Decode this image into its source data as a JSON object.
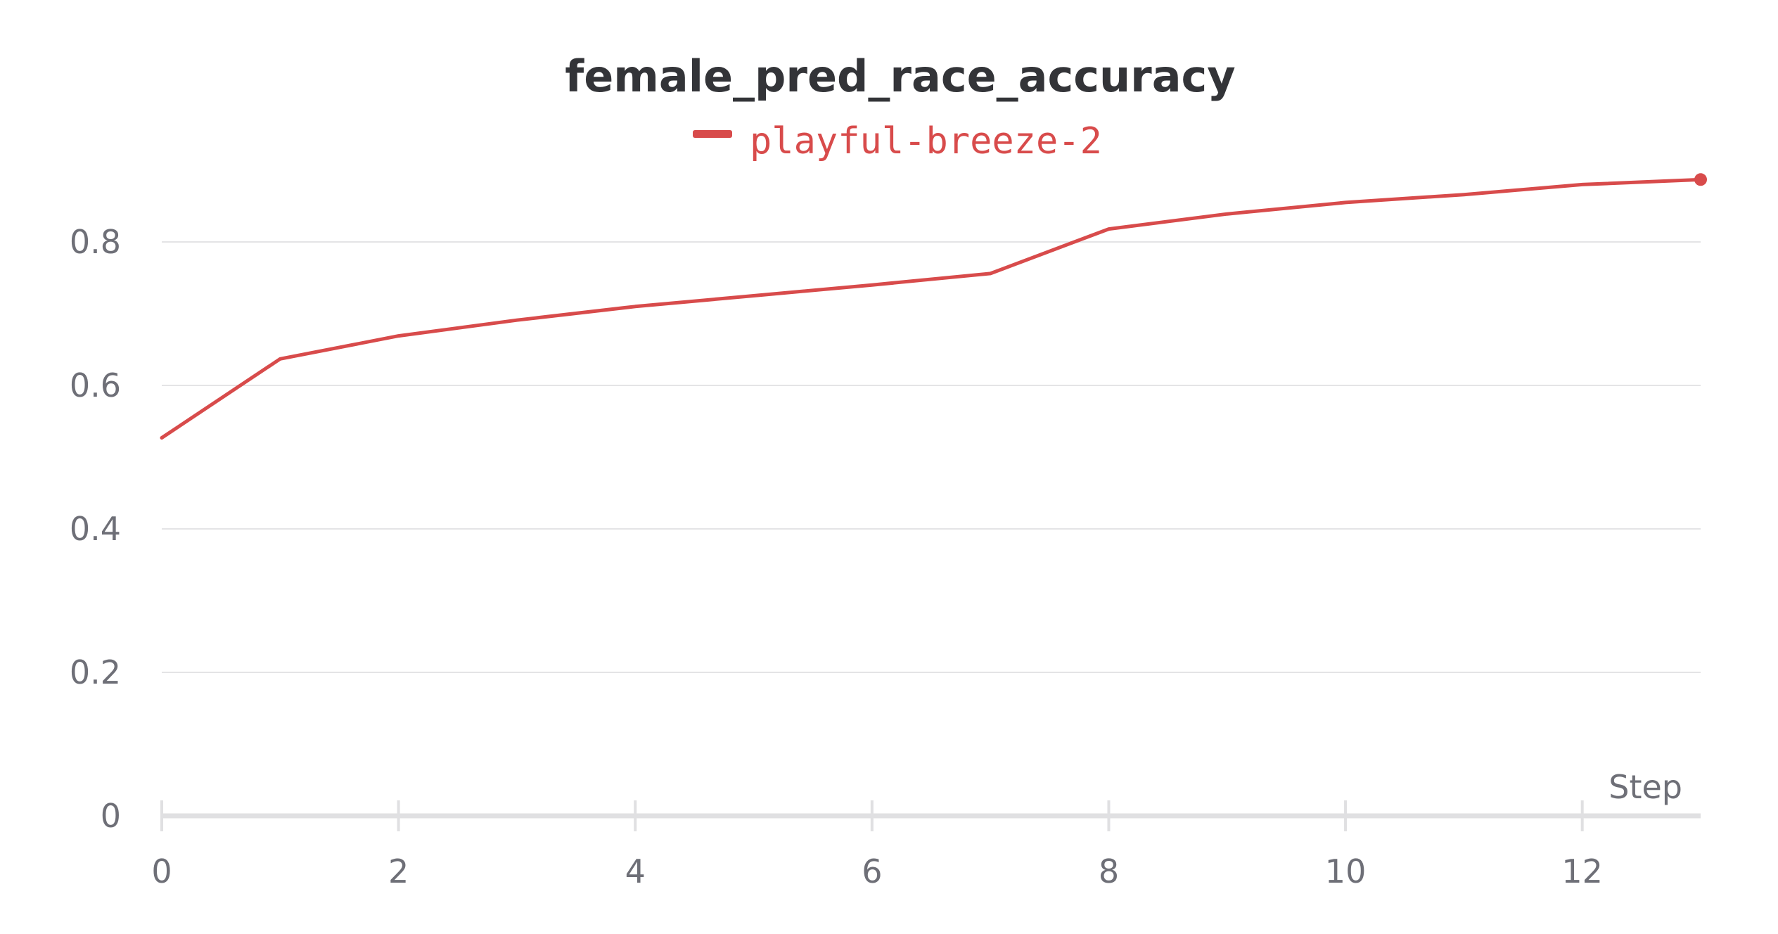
{
  "chart_data": {
    "type": "line",
    "title": "female_pred_race_accuracy",
    "xlabel": "Step",
    "ylabel": "",
    "x": [
      0,
      1,
      2,
      3,
      4,
      5,
      6,
      7,
      8,
      9,
      10,
      11,
      12,
      13
    ],
    "series": [
      {
        "name": "playful-breeze-2",
        "color": "#d84b4b",
        "values": [
          0.527,
          0.637,
          0.669,
          0.691,
          0.71,
          0.725,
          0.74,
          0.756,
          0.818,
          0.839,
          0.855,
          0.866,
          0.88,
          0.887
        ]
      }
    ],
    "xlim": [
      0,
      13
    ],
    "ylim": [
      0,
      0.9
    ],
    "x_ticks": [
      0,
      2,
      4,
      6,
      8,
      10,
      12
    ],
    "x_tick_labels": [
      "0",
      "2",
      "4",
      "6",
      "8",
      "10",
      "12"
    ],
    "y_ticks": [
      0,
      0.2,
      0.4,
      0.6,
      0.8
    ],
    "y_tick_labels": [
      "0",
      "0.2",
      "0.4",
      "0.6",
      "0.8"
    ],
    "grid": true,
    "legend_position": "top-center",
    "end_marker": true
  }
}
